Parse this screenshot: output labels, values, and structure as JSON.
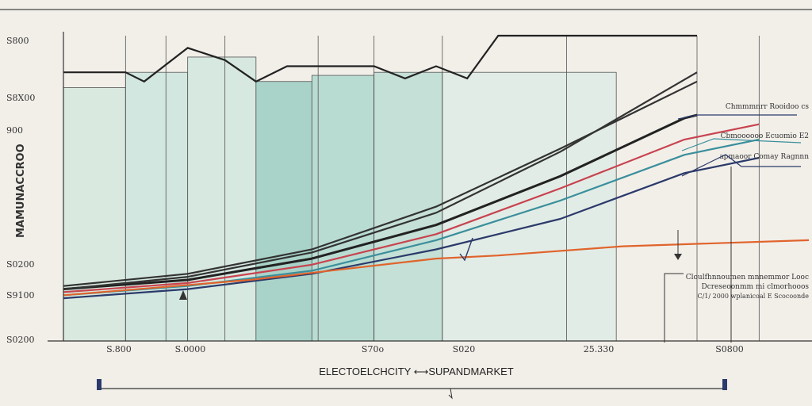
{
  "chart_data": {
    "type": "line",
    "title": "ELECTOELCHCITY ⟷SUPANDMARKET",
    "ylabel": "MAMUNACCROO",
    "xlabel": "",
    "y_ticks": [
      "S800",
      "S8X00",
      "900",
      "S0200",
      "S9100",
      "S0200"
    ],
    "x_ticks": [
      "S.800",
      "S.0000",
      "S70o",
      "S020",
      "25.330",
      "S0800"
    ],
    "x": [
      0,
      1,
      2,
      3,
      4,
      5,
      6,
      7,
      8,
      9,
      10,
      11,
      12
    ],
    "xlim": [
      0,
      12
    ],
    "ylim": [
      0,
      100
    ],
    "columns": [
      {
        "x0": 0.0,
        "x1": 1.0,
        "top": 83,
        "color": "#d9e9e0"
      },
      {
        "x0": 1.0,
        "x1": 2.0,
        "top": 88,
        "color": "#d2e7df"
      },
      {
        "x0": 2.0,
        "x1": 3.1,
        "top": 93,
        "color": "#d6e8e0"
      },
      {
        "x0": 3.1,
        "x1": 4.0,
        "top": 85,
        "color": "#a9d3c8"
      },
      {
        "x0": 4.0,
        "x1": 5.0,
        "top": 87,
        "color": "#b9dcd2"
      },
      {
        "x0": 5.0,
        "x1": 6.1,
        "top": 88,
        "color": "#c5e0d6"
      },
      {
        "x0": 6.1,
        "x1": 8.9,
        "top": 88,
        "color": "#e2ece6"
      }
    ],
    "outline_line": {
      "x": [
        0.0,
        1.0,
        1.3,
        2.0,
        2.6,
        3.1,
        3.6,
        4.0,
        5.0,
        5.5,
        6.0,
        6.5,
        7.0,
        10.2
      ],
      "y": [
        88,
        88,
        85,
        96,
        92,
        85,
        90,
        90,
        90,
        86,
        90,
        86,
        100,
        100
      ],
      "color": "#222"
    },
    "series": [
      {
        "x": [
          0,
          2,
          4,
          6,
          8,
          10,
          10.2
        ],
        "y": [
          17,
          20,
          27,
          38,
          54,
          73,
          74
        ],
        "color": "#222"
      },
      {
        "x": [
          0,
          2,
          4,
          6,
          8,
          10,
          11.2
        ],
        "y": [
          16,
          19,
          25,
          35,
          50,
          66,
          71
        ],
        "color": "#c8434f"
      },
      {
        "x": [
          0,
          2,
          4,
          6,
          8,
          10,
          11.2
        ],
        "y": [
          15,
          18,
          23,
          33,
          46,
          61,
          66
        ],
        "color": "#3a8f9c"
      },
      {
        "x": [
          0,
          2,
          4,
          6,
          8,
          10,
          11.2
        ],
        "y": [
          14,
          17,
          22,
          30,
          40,
          55,
          60
        ],
        "color": "#2b3a6b"
      },
      {
        "x": [
          0,
          3,
          6,
          7,
          9,
          12
        ],
        "y": [
          15,
          20,
          27,
          28,
          31,
          33
        ],
        "color": "#e0642c"
      },
      {
        "x": [
          0,
          2,
          4,
          6,
          8,
          10.2
        ],
        "y": [
          18,
          22,
          30,
          44,
          63,
          85
        ],
        "color": "#333"
      },
      {
        "x": [
          0,
          2,
          4,
          6,
          8,
          10.2
        ],
        "y": [
          17,
          21,
          29,
          42,
          62,
          88
        ],
        "color": "#333"
      }
    ],
    "annotations": [
      "Chmmmnrr Rooidoo cs",
      "Cbmoooooo Ecuomio E2",
      "apmaoor Comay Ragnnn",
      "Cloulfhnnoumen mnnemmor Looc",
      "Dcreseoonmm mi clmorhooos",
      "C/1/ 2000 wplanicoal E Scocoonde"
    ]
  }
}
